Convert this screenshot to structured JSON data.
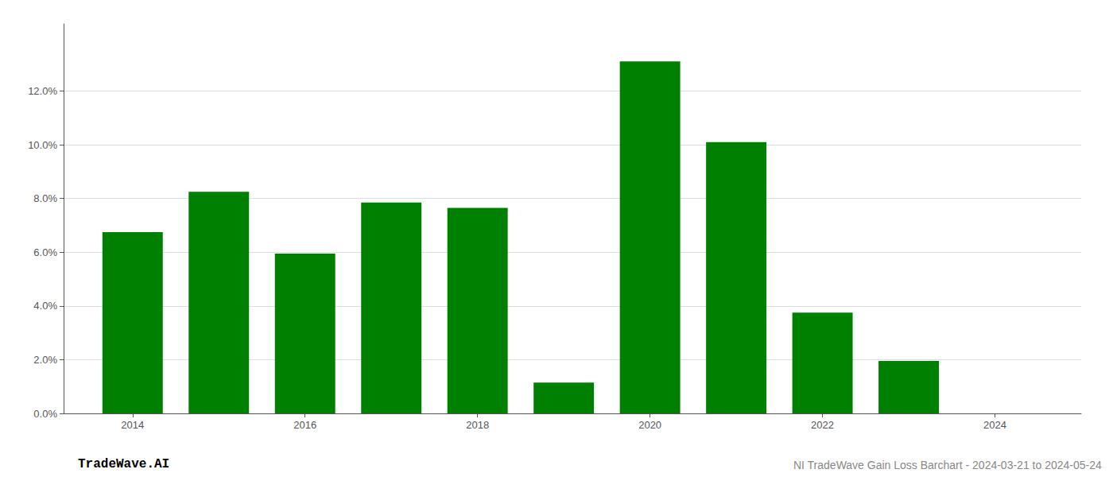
{
  "chart_data": {
    "type": "bar",
    "x": [
      2014,
      2015,
      2016,
      2017,
      2018,
      2019,
      2020,
      2021,
      2022,
      2023,
      2024
    ],
    "values": [
      0.0675,
      0.0825,
      0.0595,
      0.0785,
      0.0765,
      0.0115,
      0.131,
      0.101,
      0.0375,
      0.0195,
      0.0
    ],
    "color": "#008000",
    "xlim": [
      2013.2,
      2025.0
    ],
    "xticks": [
      2014,
      2016,
      2018,
      2020,
      2022,
      2024
    ],
    "ylim": [
      0.0,
      0.145
    ],
    "yticks": [
      {
        "value": 0.0,
        "label": "0.0%"
      },
      {
        "value": 0.02,
        "label": "2.0%"
      },
      {
        "value": 0.04,
        "label": "4.0%"
      },
      {
        "value": 0.06,
        "label": "6.0%"
      },
      {
        "value": 0.08,
        "label": "8.0%"
      },
      {
        "value": 0.1,
        "label": "10.0%"
      },
      {
        "value": 0.12,
        "label": "12.0%"
      }
    ],
    "grid": true,
    "annotations": [
      "TradeWave.AI",
      "NI TradeWave Gain Loss Barchart - 2024-03-21 to 2024-05-24"
    ]
  }
}
